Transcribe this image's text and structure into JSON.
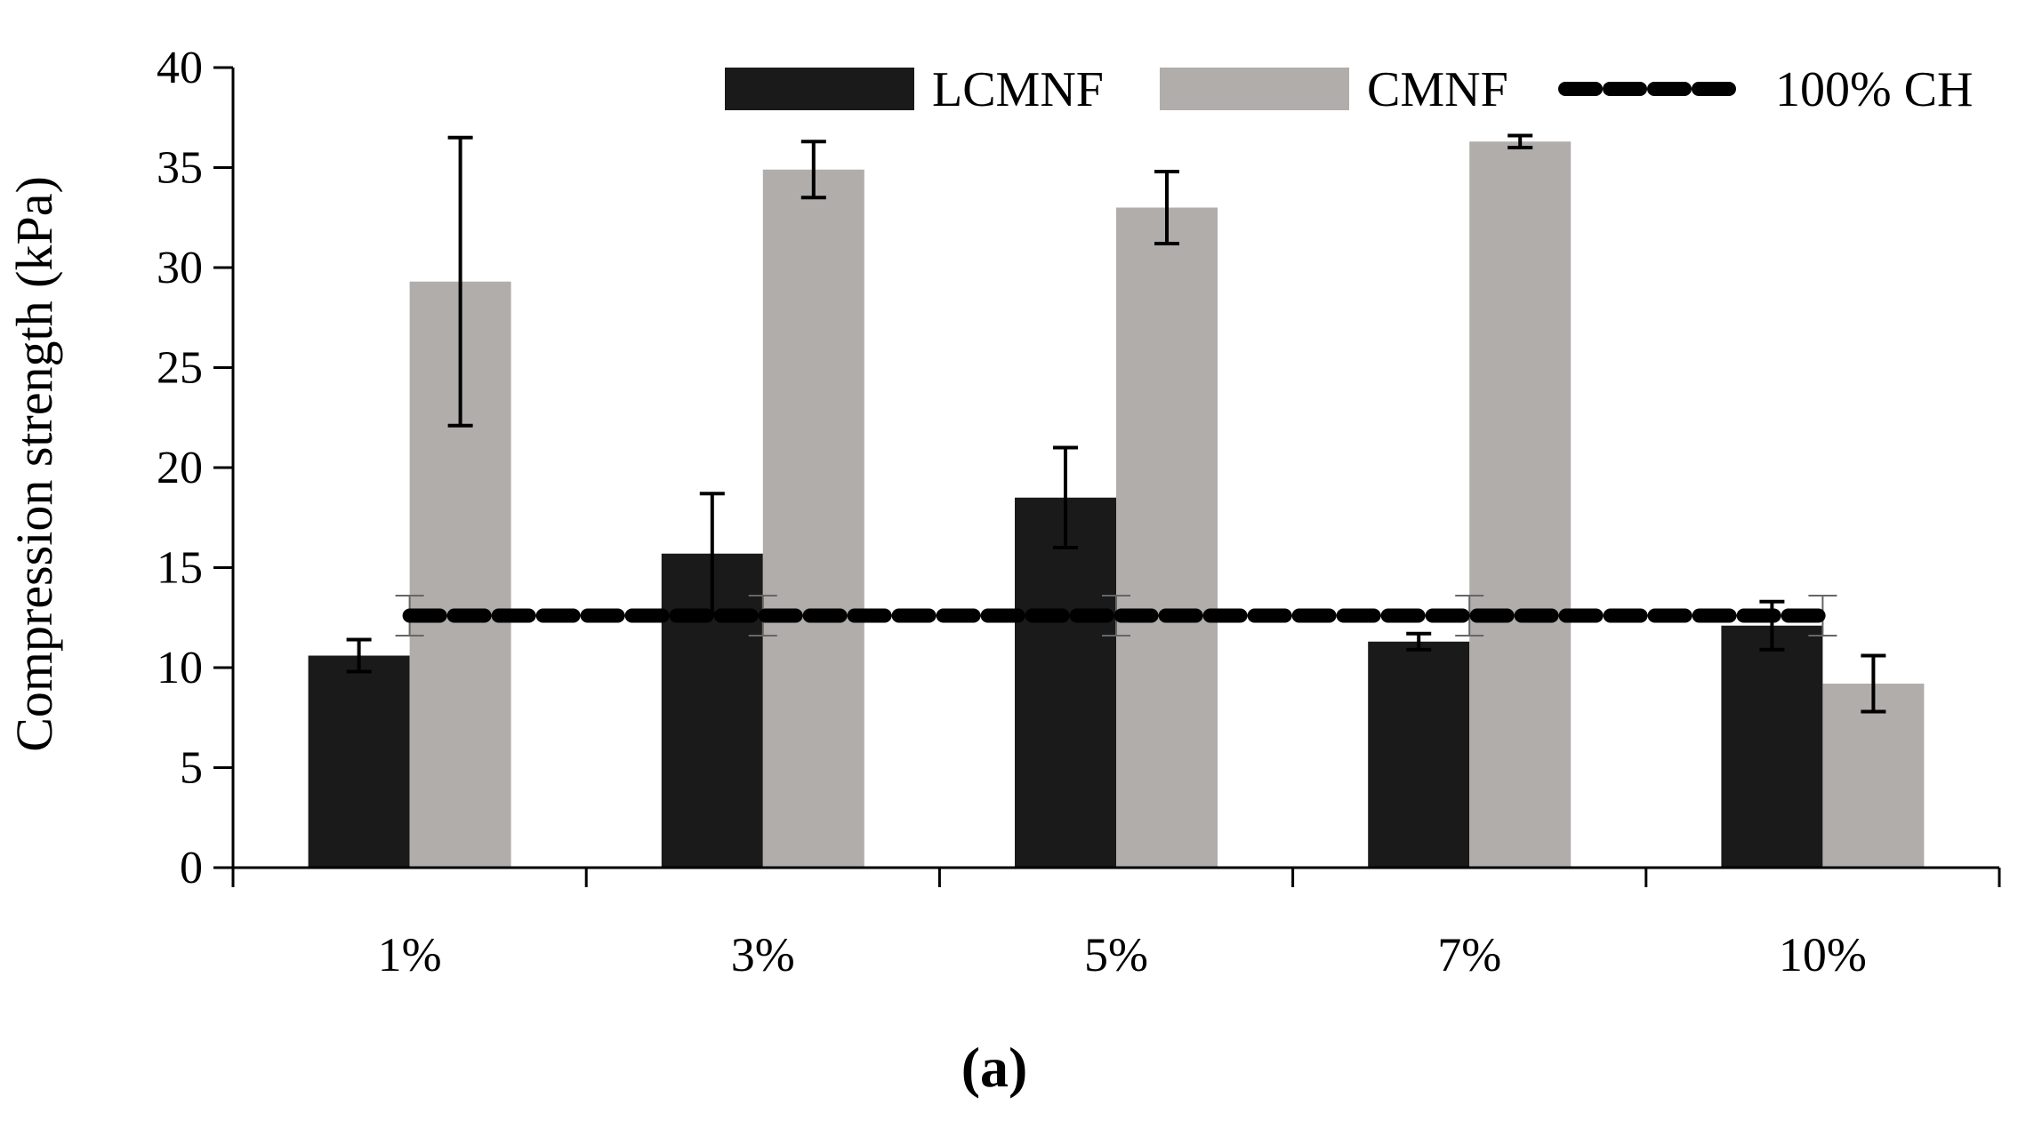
{
  "chart_data": {
    "type": "bar",
    "title": "",
    "caption": "(a)",
    "xlabel": "",
    "ylabel": "Compression strength (kPa)",
    "ylim": [
      0,
      40
    ],
    "yticks": [
      0,
      5,
      10,
      15,
      20,
      25,
      30,
      35,
      40
    ],
    "categories": [
      "1%",
      "3%",
      "5%",
      "7%",
      "10%"
    ],
    "legend_position": "top-right",
    "series": [
      {
        "name": "LCMNF",
        "color": "#1a1a1a",
        "values": [
          10.6,
          15.7,
          18.5,
          11.3,
          12.1
        ],
        "errors": [
          0.8,
          3.0,
          2.5,
          0.4,
          1.2
        ]
      },
      {
        "name": "CMNF",
        "color": "#b0adab",
        "values": [
          29.3,
          34.9,
          33.0,
          36.3,
          9.2
        ],
        "errors": [
          7.2,
          1.4,
          1.8,
          0.3,
          1.4
        ]
      }
    ],
    "reference_line": {
      "name": "100% CH",
      "value": 12.6,
      "error": 1.0,
      "style": "dashed",
      "color": "#000000"
    }
  }
}
